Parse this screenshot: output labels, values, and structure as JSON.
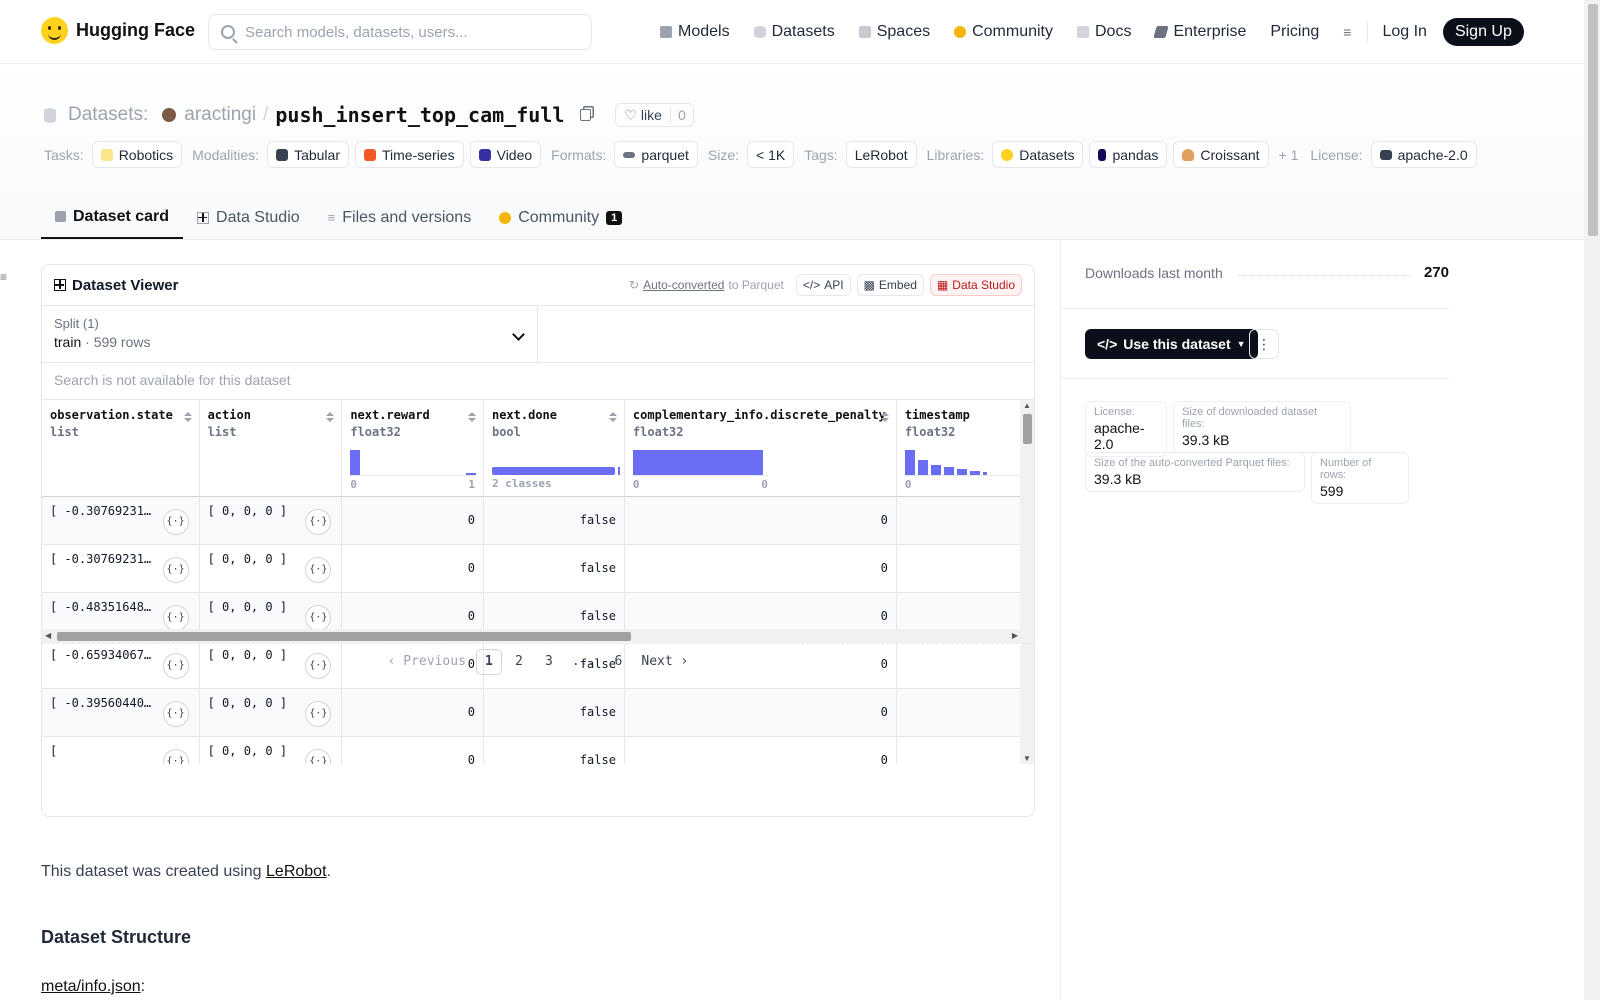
{
  "header": {
    "logo_text": "Hugging Face",
    "search_placeholder": "Search models, datasets, users...",
    "nav": [
      {
        "label": "Models",
        "icon": "cube-icon",
        "color": "#6b7280"
      },
      {
        "label": "Datasets",
        "icon": "database-icon",
        "color": "#9ca3af"
      },
      {
        "label": "Spaces",
        "icon": "spaces-icon",
        "color": "#9ca3af"
      },
      {
        "label": "Community",
        "icon": "hug-icon",
        "color": "#f5b50a"
      },
      {
        "label": "Docs",
        "icon": "book-icon",
        "color": "#9ca3af"
      },
      {
        "label": "Enterprise",
        "icon": "enterprise-icon",
        "color": "#6b7280"
      },
      {
        "label": "Pricing",
        "icon": "",
        "color": ""
      }
    ],
    "login": "Log In",
    "signup": "Sign Up"
  },
  "repo": {
    "type_label": "Datasets:",
    "owner": "aractingi",
    "name": "push_insert_top_cam_full",
    "like_label": "like",
    "like_count": "0"
  },
  "tags": {
    "tasks_label": "Tasks:",
    "tasks": [
      "Robotics"
    ],
    "modalities_label": "Modalities:",
    "modalities": [
      "Tabular",
      "Time-series",
      "Video"
    ],
    "formats_label": "Formats:",
    "formats": [
      "parquet"
    ],
    "size_label": "Size:",
    "size": [
      "< 1K"
    ],
    "tags_label": "Tags:",
    "tags": [
      "LeRobot"
    ],
    "libraries_label": "Libraries:",
    "libraries": [
      "Datasets",
      "pandas",
      "Croissant"
    ],
    "libraries_more": "+ 1",
    "license_label": "License:",
    "license": "apache-2.0"
  },
  "tabs": [
    {
      "label": "Dataset card",
      "icon": "cube-icon",
      "active": true
    },
    {
      "label": "Data Studio",
      "icon": "table-icon",
      "active": false
    },
    {
      "label": "Files and versions",
      "icon": "files-icon",
      "active": false
    },
    {
      "label": "Community",
      "icon": "hug-icon",
      "active": false,
      "badge": "1"
    }
  ],
  "viewer": {
    "title": "Dataset Viewer",
    "auto_converted": "Auto-converted",
    "to_parquet": "to Parquet",
    "api": "API",
    "embed": "Embed",
    "data_studio": "Data Studio",
    "split_label": "Split (1)",
    "split_value": "train",
    "split_rows": "599 rows",
    "search_disabled": "Search is not available for this dataset",
    "columns": [
      {
        "name": "observation.state",
        "type": "list"
      },
      {
        "name": "action",
        "type": "list"
      },
      {
        "name": "next.reward",
        "type": "float32",
        "min": "0",
        "max": "1"
      },
      {
        "name": "next.done",
        "type": "bool",
        "summary": "2 classes"
      },
      {
        "name": "complementary_info.discrete_penalty",
        "type": "float32",
        "min": "0",
        "max": "0"
      },
      {
        "name": "timestamp",
        "type": "float32",
        "min": "0",
        "max": ""
      }
    ],
    "rows": [
      {
        "state": "[ -0.30769231915...",
        "action": "[ 0, 0, 0 ]",
        "reward": "0",
        "done": "false",
        "penalty": "0"
      },
      {
        "state": "[ -0.30769231915...",
        "action": "[ 0, 0, 0 ]",
        "reward": "0",
        "done": "false",
        "penalty": "0"
      },
      {
        "state": "[ -0.48351648449...",
        "action": "[ 0, 0, 0 ]",
        "reward": "0",
        "done": "false",
        "penalty": "0"
      },
      {
        "state": "[ -0.65934067964...",
        "action": "[ 0, 0, 0 ]",
        "reward": "0",
        "done": "false",
        "penalty": "0"
      },
      {
        "state": "[ -0.39560440182...",
        "action": "[ 0, 0, 0 ]",
        "reward": "0",
        "done": "false",
        "penalty": "0"
      },
      {
        "state": "[",
        "action": "[ 0, 0, 0 ]",
        "reward": "0",
        "done": "false",
        "penalty": "0"
      }
    ],
    "pager": {
      "prev": "Previous",
      "pages": [
        "1",
        "2",
        "3",
        "...",
        "6"
      ],
      "next": "Next",
      "current": "1"
    }
  },
  "sidebar": {
    "downloads_label": "Downloads last month",
    "downloads_value": "270",
    "use_button": "Use this dataset",
    "meta": [
      {
        "label": "License:",
        "value": "apache-2.0"
      },
      {
        "label": "Size of downloaded dataset files:",
        "value": "39.3 kB"
      },
      {
        "label": "Size of the auto-converted Parquet files:",
        "value": "39.3 kB"
      },
      {
        "label": "Number of rows:",
        "value": "599"
      }
    ]
  },
  "readme": {
    "intro_prefix": "This dataset was created using ",
    "intro_link": "LeRobot",
    "intro_suffix": ".",
    "heading": "Dataset Structure",
    "meta_link": "meta/info.json",
    "meta_suffix": ":"
  },
  "colors": {
    "accent": "#6366f1",
    "dark": "#0b0f19",
    "brand": "#ffd21e"
  }
}
